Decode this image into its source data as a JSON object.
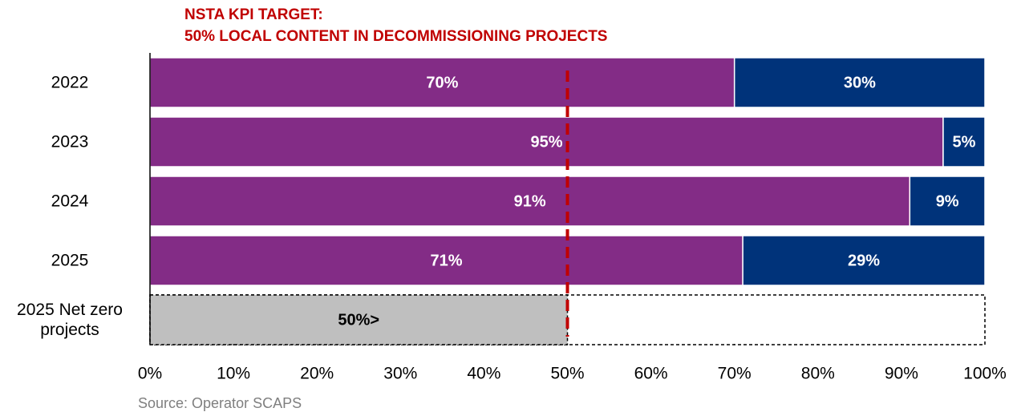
{
  "chart_data": {
    "type": "stacked-bar-horizontal",
    "title": "NSTA KPI TARGET:",
    "subtitle": "50% LOCAL CONTENT IN DECOMMISSIONING PROJECTS",
    "source": "Source: Operator SCAPS",
    "categories": [
      "2022",
      "2023",
      "2024",
      "2025",
      "2025 Net zero projects"
    ],
    "series": [
      {
        "color": "#832c86",
        "values": [
          70,
          95,
          91,
          71,
          null
        ],
        "value_labels": [
          "70%",
          "95%",
          "91%",
          "71%",
          null
        ]
      },
      {
        "color": "#00337a",
        "values": [
          30,
          5,
          9,
          29,
          null
        ],
        "value_labels": [
          "30%",
          "5%",
          "9%",
          "29%",
          null
        ]
      },
      {
        "color": "#bfbfbf",
        "values": [
          null,
          null,
          null,
          null,
          50
        ],
        "value_labels": [
          null,
          null,
          null,
          null,
          "50%>"
        ]
      }
    ],
    "target": 50,
    "target_color": "#c00000",
    "xlim": [
      0,
      100
    ],
    "xticks": [
      {
        "value": 0,
        "label": "0%"
      },
      {
        "value": 10,
        "label": "10%"
      },
      {
        "value": 20,
        "label": "20%"
      },
      {
        "value": 30,
        "label": "30%"
      },
      {
        "value": 40,
        "label": "40%"
      },
      {
        "value": 50,
        "label": "50%"
      },
      {
        "value": 60,
        "label": "60%"
      },
      {
        "value": 70,
        "label": "70%"
      },
      {
        "value": 80,
        "label": "80%"
      },
      {
        "value": 90,
        "label": "90%"
      },
      {
        "value": 100,
        "label": "100%"
      }
    ]
  }
}
